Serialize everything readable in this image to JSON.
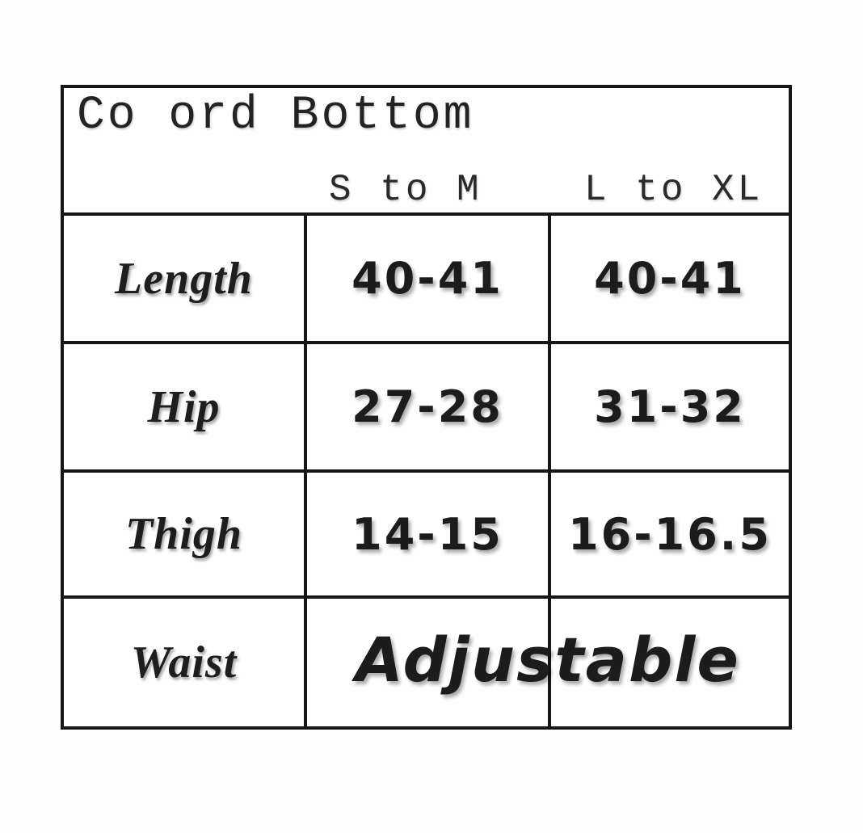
{
  "table": {
    "title": "Co ord Bottom",
    "columns": [
      {
        "label": "S to M"
      },
      {
        "label": "L to XL"
      }
    ],
    "rows": [
      {
        "label": "Length",
        "values": [
          "40-41",
          "40-41"
        ]
      },
      {
        "label": "Hip",
        "values": [
          "27-28",
          "31-32"
        ]
      },
      {
        "label": "Thigh",
        "values": [
          "14-15",
          "16-16.5"
        ]
      },
      {
        "label": "Waist",
        "values": [
          "Adjustable"
        ],
        "merged": true
      }
    ],
    "colors": {
      "border": "#161616",
      "text": "#1c1c1c",
      "background": "#fdfdfd"
    }
  },
  "chart_data": {
    "type": "table",
    "title": "Co ord Bottom",
    "categories": [
      "S to M",
      "L to XL"
    ],
    "rows": [
      {
        "measure": "Length",
        "s_to_m": "40-41",
        "l_to_xl": "40-41"
      },
      {
        "measure": "Hip",
        "s_to_m": "27-28",
        "l_to_xl": "31-32"
      },
      {
        "measure": "Thigh",
        "s_to_m": "14-15",
        "l_to_xl": "16-16.5"
      },
      {
        "measure": "Waist",
        "s_to_m": "Adjustable",
        "l_to_xl": "Adjustable"
      }
    ]
  }
}
